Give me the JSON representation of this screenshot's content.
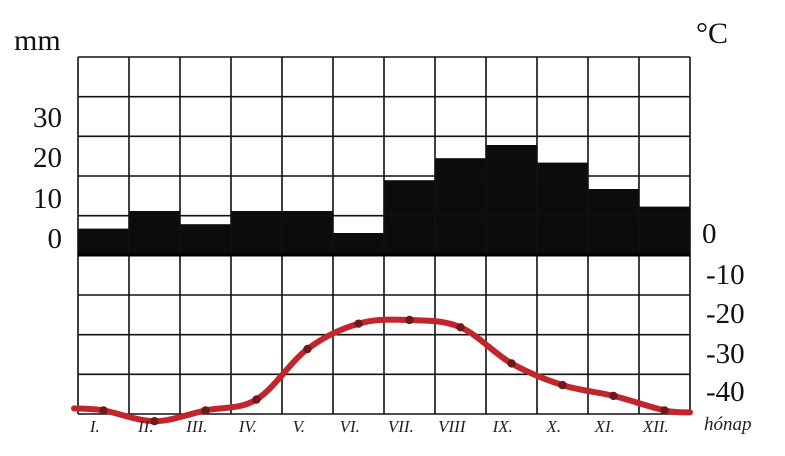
{
  "chart_data": {
    "type": "bar+line",
    "xlabel": "hónap",
    "categories": [
      "I.",
      "II.",
      "III.",
      "IV.",
      "V.",
      "VI.",
      "VII.",
      "VIII",
      "IX.",
      "X.",
      "XI.",
      "XII."
    ],
    "precip_unit": "mm",
    "temp_unit": "°C",
    "precip_ticks": [
      "0",
      "10",
      "20",
      "30"
    ],
    "temp_ticks": [
      "0",
      "-10",
      "-20",
      "-30",
      "-40"
    ],
    "precip_ylim": [
      0,
      45
    ],
    "temp_ylim": [
      -44,
      0
    ],
    "grid": true,
    "series": [
      {
        "kind": "bar",
        "axis": "precipitation",
        "color": "#0c0c0c",
        "values": [
          6,
          10,
          7,
          10,
          10,
          5,
          17,
          22,
          25,
          21,
          15,
          11
        ]
      },
      {
        "kind": "line",
        "axis": "temperature",
        "color": "#c0262b",
        "values": [
          -43,
          -46,
          -43,
          -40,
          -26,
          -19,
          -18,
          -20,
          -30,
          -36,
          -39,
          -43
        ]
      }
    ]
  }
}
